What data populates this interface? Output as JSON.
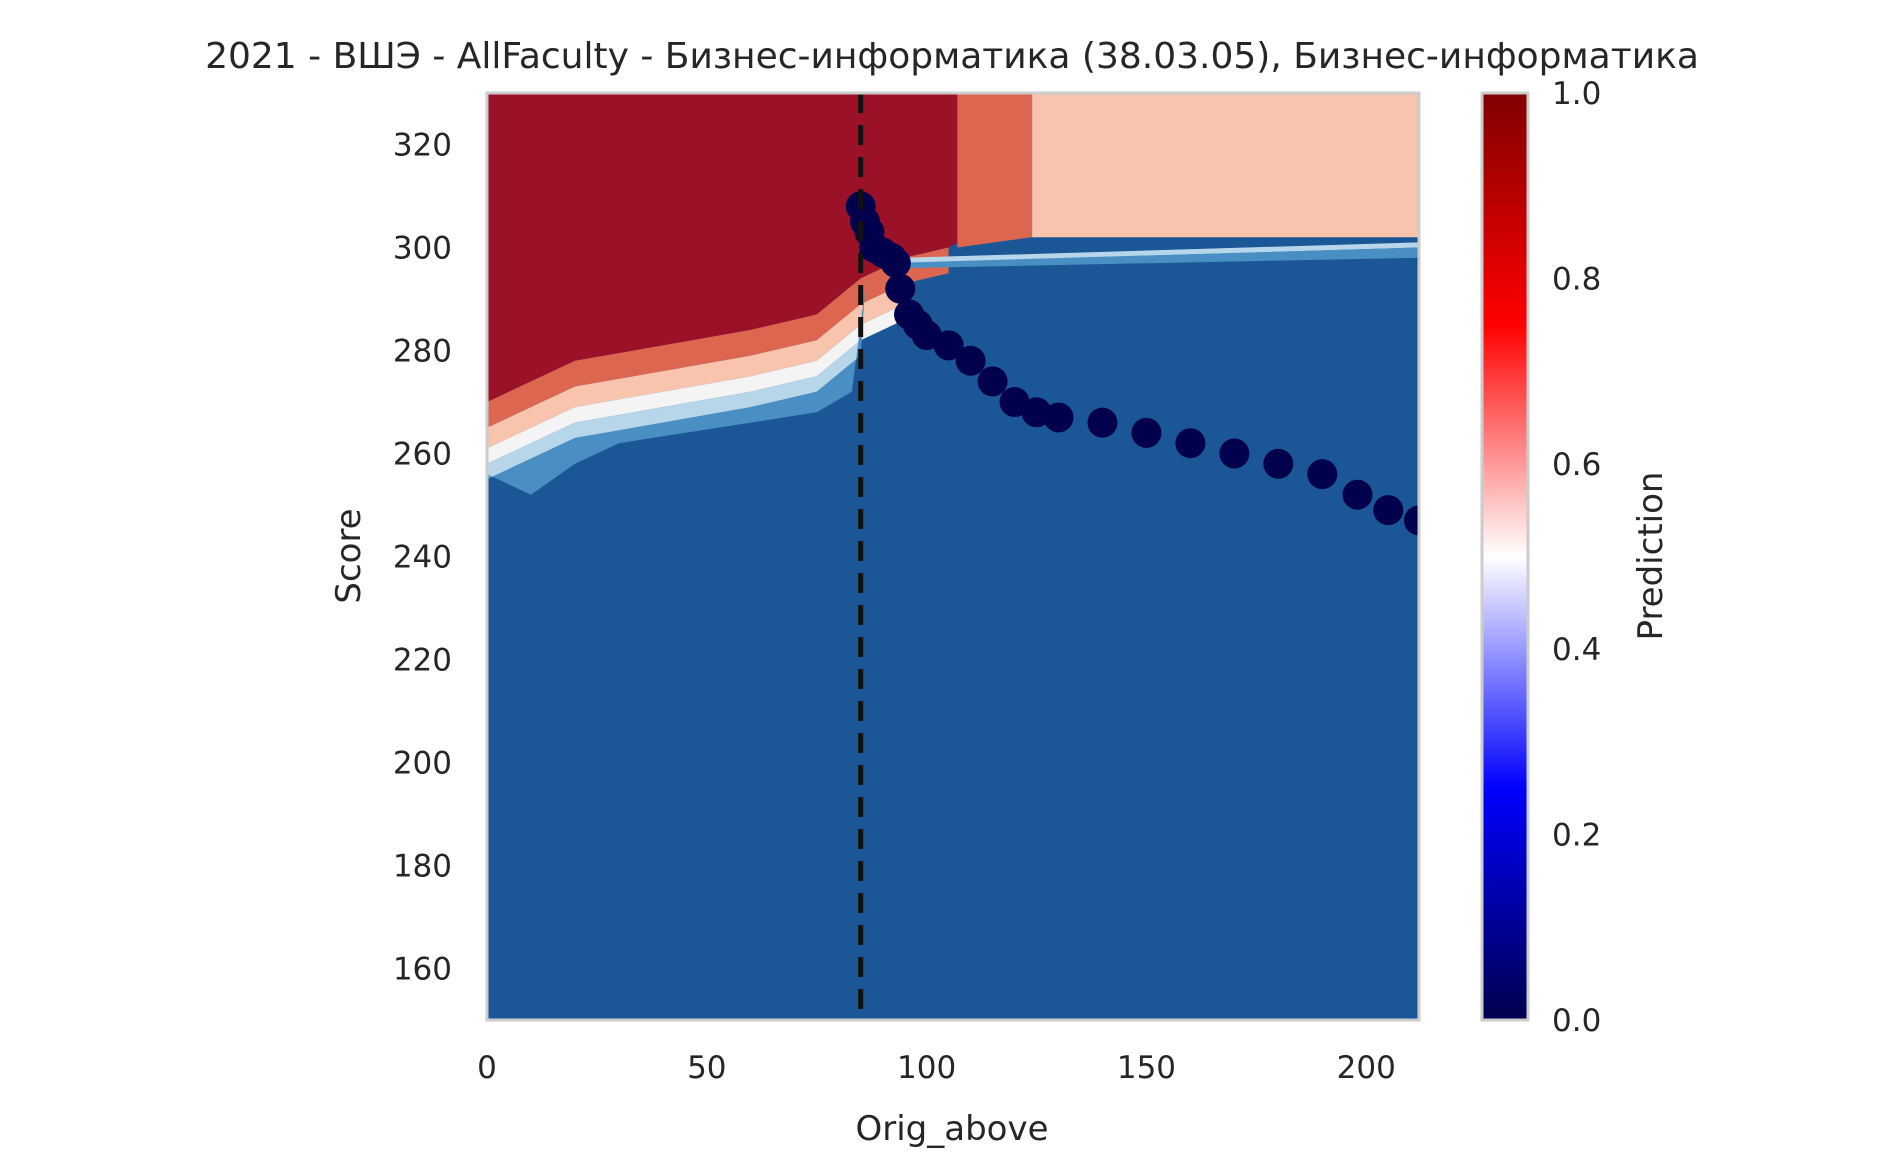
{
  "chart_data": {
    "type": "heatmap",
    "title": "2021 - ВШЭ - AllFaculty - Бизнес-информатика (38.03.05), Бизнес-информатика",
    "xlabel": "Orig_above",
    "ylabel": "Score",
    "xlim": [
      0,
      212
    ],
    "ylim": [
      150,
      330
    ],
    "x_ticks": [
      0,
      50,
      100,
      150,
      200
    ],
    "y_ticks": [
      160,
      180,
      200,
      220,
      240,
      260,
      280,
      300,
      320
    ],
    "grid": false,
    "threshold_line": {
      "x": 85,
      "style": "dashed",
      "color": "#111111"
    },
    "contour_levels": [
      {
        "level": 0.0,
        "color": "#1b5696"
      },
      {
        "level": 0.2,
        "color": "#4a8fc4"
      },
      {
        "level": 0.4,
        "color": "#b8d6ea"
      },
      {
        "level": 0.5,
        "color": "#f4f4f4"
      },
      {
        "level": 0.6,
        "color": "#f9c4ad"
      },
      {
        "level": 0.75,
        "color": "#dd6651"
      },
      {
        "level": 0.9,
        "color": "#9b1127"
      }
    ],
    "boundary_regions": {
      "upper_red_boundary": [
        [
          0,
          270
        ],
        [
          20,
          278
        ],
        [
          40,
          281
        ],
        [
          60,
          284
        ],
        [
          75,
          287
        ],
        [
          85,
          294
        ],
        [
          95,
          298
        ],
        [
          105,
          300
        ],
        [
          124,
          302
        ],
        [
          212,
          302
        ]
      ],
      "upper_red_break_x": 107,
      "upper_salmon_break_x": 124,
      "blue_top": [
        [
          0,
          256
        ],
        [
          10,
          252
        ],
        [
          20,
          258
        ],
        [
          30,
          262
        ],
        [
          45,
          264
        ],
        [
          60,
          266
        ],
        [
          75,
          268
        ],
        [
          83,
          272
        ],
        [
          86,
          292
        ],
        [
          95,
          296
        ],
        [
          124,
          298
        ],
        [
          212,
          298
        ]
      ]
    },
    "series": [
      {
        "name": "Prediction",
        "marker": "circle",
        "color": "#00004d",
        "points": [
          [
            85,
            308
          ],
          [
            86,
            305
          ],
          [
            87,
            303
          ],
          [
            88,
            300
          ],
          [
            90,
            299
          ],
          [
            92,
            298
          ],
          [
            93,
            297
          ],
          [
            94,
            292
          ],
          [
            96,
            287
          ],
          [
            98,
            285
          ],
          [
            100,
            283
          ],
          [
            105,
            281
          ],
          [
            110,
            278
          ],
          [
            115,
            274
          ],
          [
            120,
            270
          ],
          [
            125,
            268
          ],
          [
            130,
            267
          ],
          [
            140,
            266
          ],
          [
            150,
            264
          ],
          [
            160,
            262
          ],
          [
            170,
            260
          ],
          [
            180,
            258
          ],
          [
            190,
            256
          ],
          [
            198,
            252
          ],
          [
            205,
            249
          ],
          [
            212,
            247
          ]
        ]
      }
    ],
    "colorbar": {
      "label": "Prediction",
      "range": [
        0.0,
        1.0
      ],
      "ticks": [
        "0.0",
        "0.2",
        "0.4",
        "0.6",
        "0.8",
        "1.0"
      ],
      "colormap": "seismic"
    }
  }
}
